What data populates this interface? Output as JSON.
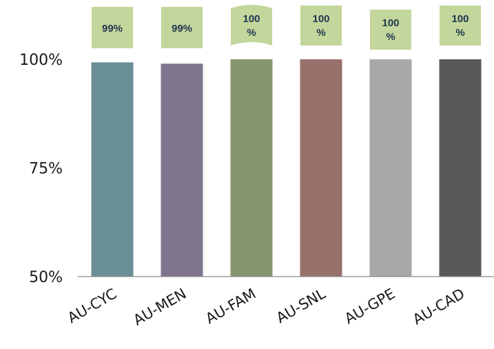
{
  "chart_data": {
    "type": "bar",
    "title": "",
    "xlabel": "",
    "ylabel": "",
    "categories": [
      "AU-CYC",
      "AU-MEN",
      "AU-FAM",
      "AU-SNL",
      "AU-GPE",
      "AU-CAD"
    ],
    "values": [
      99.3,
      99.0,
      100,
      100,
      100,
      100
    ],
    "data_labels": [
      "99%",
      "99%",
      "100\n%",
      "100\n%",
      "100\n%",
      "100\n%"
    ],
    "ylim": [
      50,
      100
    ],
    "yticks": [
      50,
      75,
      100
    ],
    "ytick_labels": [
      "50%",
      "75%",
      "100%"
    ],
    "colors": [
      "#6b8f96",
      "#7f758c",
      "#889670",
      "#98706c",
      "#a8a8a8",
      "#585858"
    ],
    "label_box_color": "#c3d69b",
    "axis_color": "#8c8c8c",
    "grid": false,
    "legend": "none"
  }
}
